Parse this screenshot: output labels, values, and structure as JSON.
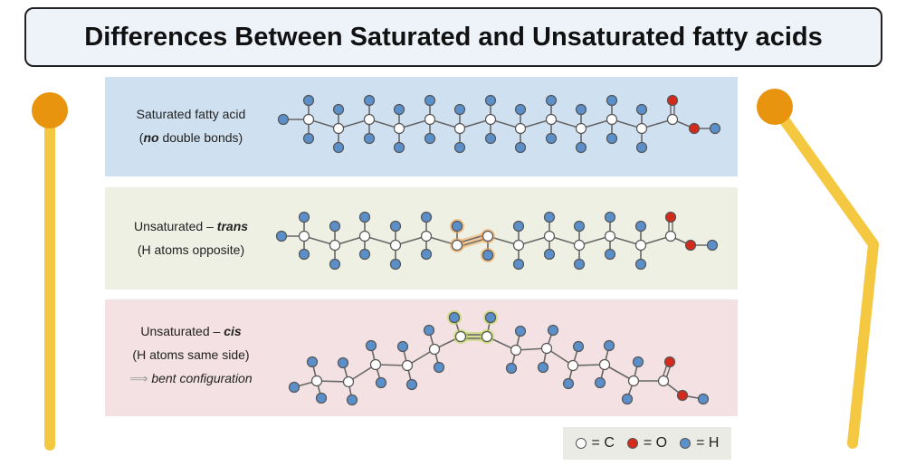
{
  "title": "Differences Between Saturated and Unsaturated fatty acids",
  "panels": {
    "saturated": {
      "line1": "Saturated fatty acid",
      "line2_em": "no",
      "line2_rest": " double bonds)",
      "line2_open": "("
    },
    "trans": {
      "line1_prefix": "Unsaturated – ",
      "line1_em": "trans",
      "line2": "(H atoms opposite)"
    },
    "cis": {
      "line1_prefix": "Unsaturated – ",
      "line1_em": "cis",
      "line2": "(H atoms same side)",
      "line3": "bent configuration",
      "arrow": "⟹"
    }
  },
  "legend": {
    "c": "= C",
    "o": "= O",
    "h": "= H"
  },
  "colors": {
    "carbon": "#ffffff",
    "oxygen": "#d42a1c",
    "hydrogen": "#5b8fc9",
    "trans_highlight": "#f0a050",
    "cis_highlight": "#b8d84a",
    "pole": "#f5c842",
    "pole_cap": "#e8940f"
  }
}
